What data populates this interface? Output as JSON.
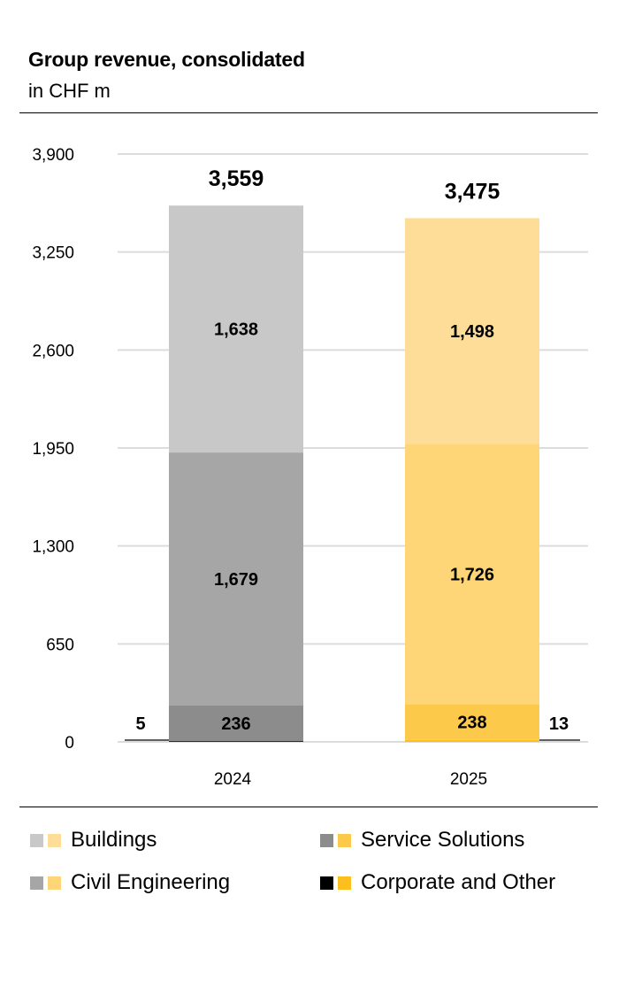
{
  "header": {
    "title": "Group revenue, consolidated",
    "subtitle": "in CHF m"
  },
  "chart_data": {
    "type": "bar",
    "stacked": true,
    "title": "Group revenue, consolidated",
    "subtitle": "in CHF m",
    "categories": [
      "2024",
      "2025"
    ],
    "ylim": [
      0,
      3900
    ],
    "yticks": [
      "0",
      "650",
      "1,300",
      "1,950",
      "2,600",
      "3,250",
      "3,900"
    ],
    "ytick_values": [
      0,
      650,
      1300,
      1950,
      2600,
      3250,
      3900
    ],
    "grid": true,
    "legend_position": "bottom",
    "totals": [
      3559,
      3475
    ],
    "total_labels": [
      "3,559",
      "3,475"
    ],
    "series": [
      {
        "name": "Corporate and Other",
        "values": [
          5,
          13
        ],
        "labels": [
          "5",
          "13"
        ],
        "colors": [
          "#000000",
          "#fcbf1e"
        ]
      },
      {
        "name": "Service Solutions",
        "values": [
          236,
          238
        ],
        "labels": [
          "236",
          "238"
        ],
        "colors": [
          "#8c8c8c",
          "#fdc94a"
        ]
      },
      {
        "name": "Civil Engineering",
        "values": [
          1679,
          1726
        ],
        "labels": [
          "1,679",
          "1,726"
        ],
        "colors": [
          "#a6a6a6",
          "#fed677"
        ]
      },
      {
        "name": "Buildings",
        "values": [
          1638,
          1498
        ],
        "labels": [
          "1,638",
          "1,498"
        ],
        "colors": [
          "#c8c8c8",
          "#fedd99"
        ]
      }
    ]
  },
  "legend": {
    "items": [
      {
        "label": "Buildings",
        "colors": [
          "#c8c8c8",
          "#fedd99"
        ]
      },
      {
        "label": "Service Solutions",
        "colors": [
          "#8c8c8c",
          "#fdc94a"
        ]
      },
      {
        "label": "Civil Engineering",
        "colors": [
          "#a6a6a6",
          "#fed677"
        ]
      },
      {
        "label": "Corporate and Other",
        "colors": [
          "#000000",
          "#fcbf1e"
        ]
      }
    ]
  }
}
